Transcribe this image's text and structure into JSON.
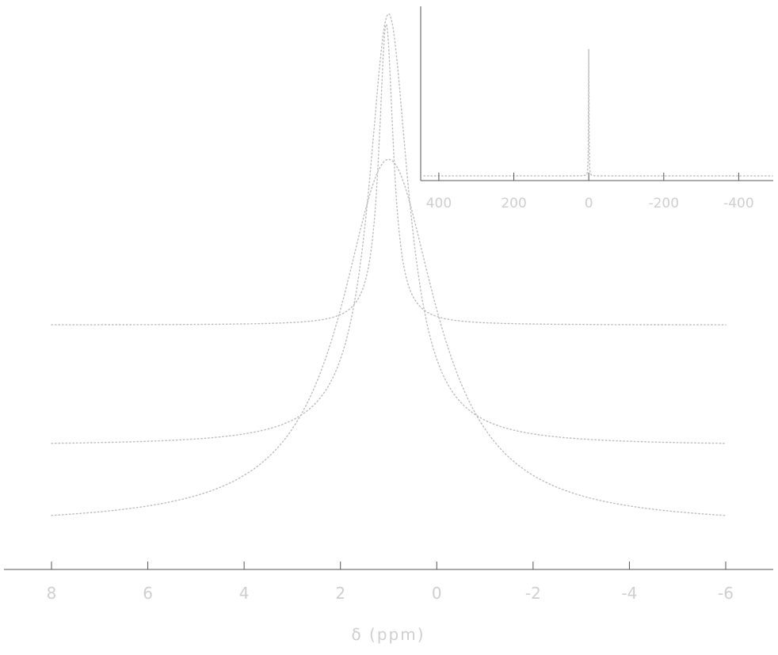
{
  "chart_data": [
    {
      "type": "line",
      "id": "main",
      "title": "",
      "xlabel": "δ (ppm)",
      "ylabel": "",
      "x_reversed": true,
      "xlim": [
        8.0,
        -6.0
      ],
      "ylim": [
        0,
        1
      ],
      "xticks": [
        8,
        6,
        4,
        2,
        0,
        -2,
        -4,
        -6
      ],
      "xtick_labels": [
        "8",
        "6",
        "4",
        "2",
        "0",
        "-2",
        "-4",
        "-6"
      ],
      "grid": false,
      "legend": "none",
      "series": [
        {
          "lorentz": {
            "center": 1.0,
            "hwhm": 1.2,
            "height": 0.73,
            "baseline": 0.0
          },
          "style": "dotted"
        },
        {
          "lorentz": {
            "center": 1.0,
            "hwhm": 0.5,
            "height": 0.86,
            "baseline": 0.16
          },
          "style": "dotted"
        },
        {
          "lorentz": {
            "center": 1.05,
            "hwhm": 0.18,
            "height": 0.6,
            "baseline": 0.4
          },
          "style": "dotted"
        }
      ],
      "colors": {
        "line": "#bdbdbd",
        "axis": "#555555",
        "text": "#cfcfcf"
      }
    },
    {
      "type": "line",
      "id": "inset",
      "title": "",
      "xlabel": "",
      "ylabel": "",
      "x_reversed": true,
      "xlim": [
        440,
        -490
      ],
      "xticks": [
        400,
        200,
        0,
        -200,
        -400
      ],
      "xtick_labels": [
        "400",
        "200",
        "0",
        "-200",
        "-400"
      ],
      "series": [
        {
          "lorentz": {
            "center": 0,
            "hwhm": 0.6,
            "height": 0.95,
            "baseline": 0.02
          },
          "style": "dotted"
        }
      ],
      "colors": {
        "line": "#bdbdbd",
        "axis": "#555555",
        "text": "#cfcfcf"
      }
    }
  ]
}
